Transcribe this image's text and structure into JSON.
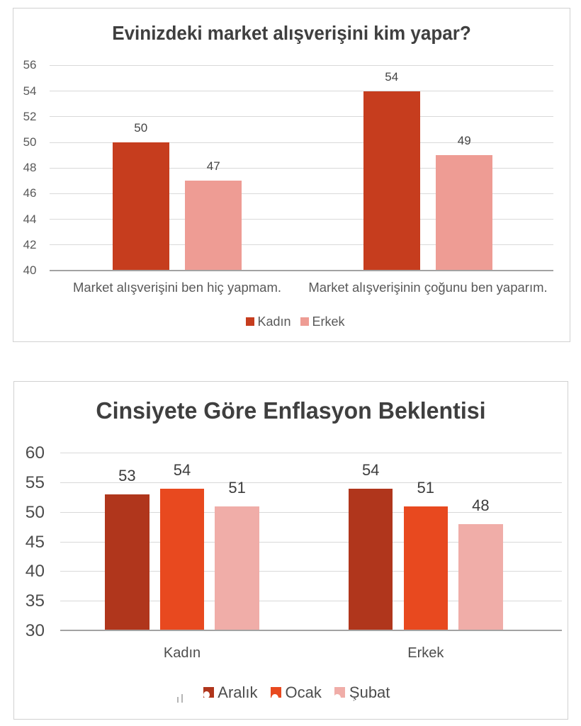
{
  "chart_data": [
    {
      "type": "bar",
      "title": "Evinizdeki market alışverişini kim yapar?",
      "categories": [
        "Market alışverişini ben hiç yapmam.",
        "Market alışverişinin çoğunu ben yaparım."
      ],
      "series": [
        {
          "name": "Kadın",
          "color": "#C63D1E",
          "values": [
            50,
            54
          ]
        },
        {
          "name": "Erkek",
          "color": "#EE9C94",
          "values": [
            47,
            49
          ]
        }
      ],
      "yticks": [
        40,
        42,
        44,
        46,
        48,
        50,
        52,
        54,
        56
      ],
      "ylim": [
        40,
        56
      ],
      "grid": true,
      "legend_position": "bottom",
      "title_color": "#3F3F3F",
      "text_color": "#595959",
      "value_label_color": "#444444"
    },
    {
      "type": "bar",
      "title": "Cinsiyete Göre Enflasyon Beklentisi",
      "categories": [
        "Kadın",
        "Erkek"
      ],
      "series": [
        {
          "name": "Aralık",
          "color": "#B0361C",
          "values": [
            53,
            54
          ]
        },
        {
          "name": "Ocak",
          "color": "#E8491F",
          "values": [
            54,
            51
          ]
        },
        {
          "name": "Şubat",
          "color": "#F0ADA8",
          "values": [
            51,
            48
          ]
        }
      ],
      "yticks": [
        30,
        35,
        40,
        45,
        50,
        55,
        60
      ],
      "ylim": [
        30,
        60
      ],
      "grid": true,
      "legend_position": "bottom",
      "title_color": "#3F3F3F",
      "text_color": "#4D4D4D",
      "value_label_color": "#3C3C3C"
    }
  ]
}
